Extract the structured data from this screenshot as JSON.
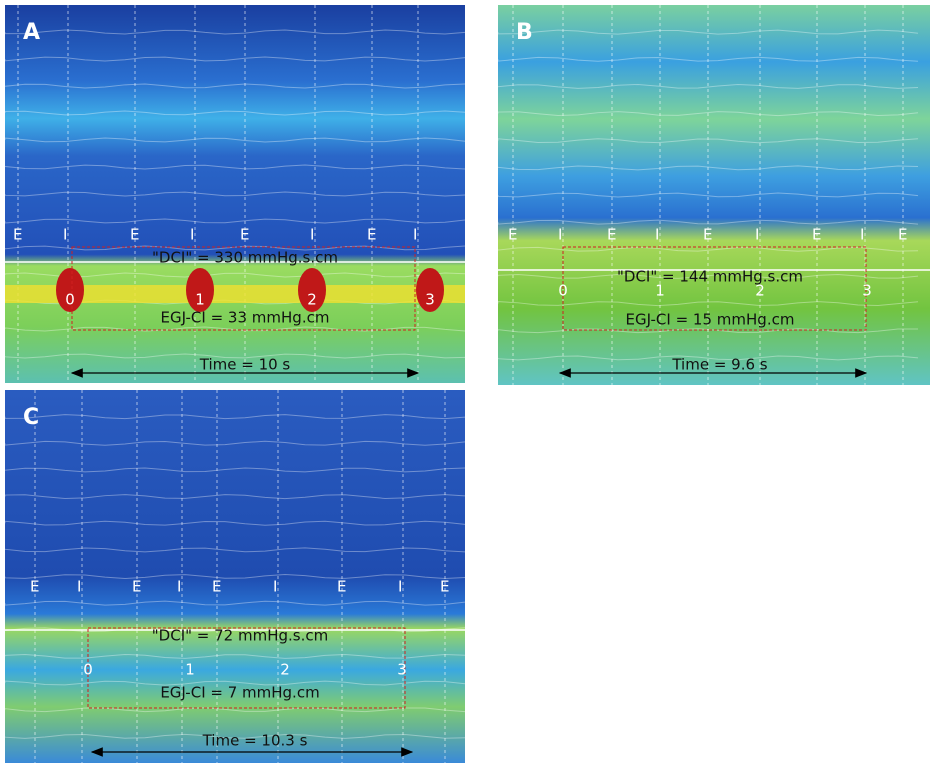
{
  "panels": [
    {
      "label": "A",
      "markers": [
        "E",
        "I",
        "E",
        "I",
        "E",
        "I",
        "E",
        "I"
      ],
      "dci": "\"DCI\" = 330 mmHg.s.cm",
      "egj_ci": "EGJ-CI = 33 mmHg.cm",
      "numbers": [
        "0",
        "1",
        "2",
        "3"
      ],
      "time": "Time = 10 s"
    },
    {
      "label": "B",
      "markers": [
        "E",
        "I",
        "E",
        "I",
        "E",
        "I",
        "E",
        "I",
        "E"
      ],
      "dci": "\"DCI\" = 144 mmHg.s.cm",
      "egj_ci": "EGJ-CI = 15 mmHg.cm",
      "numbers": [
        "0",
        "1",
        "2",
        "3"
      ],
      "time": "Time = 9.6 s"
    },
    {
      "label": "C",
      "markers": [
        "E",
        "I",
        "E",
        "I",
        "E",
        "I",
        "E",
        "I",
        "E"
      ],
      "dci": "\"DCI\" = 72 mmHg.s.cm",
      "egj_ci": "EGJ-CI = 7 mmHg.cm",
      "numbers": [
        "0",
        "1",
        "2",
        "3"
      ],
      "time": "Time = 10.3 s"
    }
  ]
}
